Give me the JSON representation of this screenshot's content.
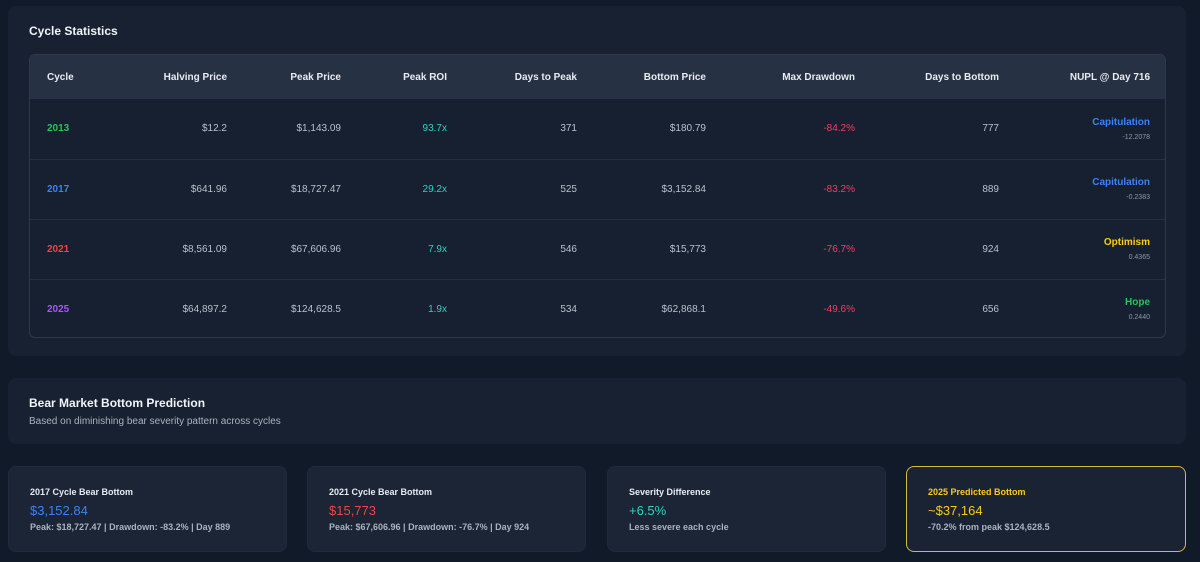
{
  "stats": {
    "title": "Cycle Statistics",
    "headers": [
      "Cycle",
      "Halving Price",
      "Peak Price",
      "Peak ROI",
      "Days to Peak",
      "Bottom Price",
      "Max Drawdown",
      "Days to Bottom",
      "NUPL @ Day 716"
    ],
    "rows": [
      {
        "cycle": "2013",
        "cycle_color": "#22c55e",
        "halving": "$12.2",
        "peak": "$1,143.09",
        "roi": "93.7x",
        "days_peak": "371",
        "bottom": "$180.79",
        "drawdown": "-84.2%",
        "days_bottom": "777",
        "nupl_label": "Capitulation",
        "nupl_color": "#3b82f6",
        "nupl_value": "-12.2078"
      },
      {
        "cycle": "2017",
        "cycle_color": "#3b82f6",
        "halving": "$641.96",
        "peak": "$18,727.47",
        "roi": "29.2x",
        "days_peak": "525",
        "bottom": "$3,152.84",
        "drawdown": "-83.2%",
        "days_bottom": "889",
        "nupl_label": "Capitulation",
        "nupl_color": "#3b82f6",
        "nupl_value": "-0.2383"
      },
      {
        "cycle": "2021",
        "cycle_color": "#ef4444",
        "halving": "$8,561.09",
        "peak": "$67,606.96",
        "roi": "7.9x",
        "days_peak": "546",
        "bottom": "$15,773",
        "drawdown": "-76.7%",
        "days_bottom": "924",
        "nupl_label": "Optimism",
        "nupl_color": "#facc15",
        "nupl_value": "0.4365"
      },
      {
        "cycle": "2025",
        "cycle_color": "#a855f7",
        "halving": "$64,897.2",
        "peak": "$124,628.5",
        "roi": "1.9x",
        "days_peak": "534",
        "bottom": "$62,868.1",
        "drawdown": "-49.6%",
        "days_bottom": "656",
        "nupl_label": "Hope",
        "nupl_color": "#22c55e",
        "nupl_value": "0.2440"
      }
    ],
    "roi_color": "#2dd4bf",
    "drawdown_color": "#f43f5e"
  },
  "prediction": {
    "title": "Bear Market Bottom Prediction",
    "subtitle": "Based on diminishing bear severity pattern across cycles"
  },
  "cards": [
    {
      "label": "2017 Cycle Bear Bottom",
      "value": "$3,152.84",
      "value_color": "#3b82f6",
      "detail": "Peak: $18,727.47 | Drawdown: -83.2% | Day 889"
    },
    {
      "label": "2021 Cycle Bear Bottom",
      "value": "$15,773",
      "value_color": "#ef4444",
      "detail": "Peak: $67,606.96 | Drawdown: -76.7% | Day 924"
    },
    {
      "label": "Severity Difference",
      "value": "+6.5%",
      "value_color": "#2dd4bf",
      "detail": "Less severe each cycle"
    },
    {
      "label": "2025 Predicted Bottom",
      "label_color": "#facc15",
      "value": "~$37,164",
      "value_color": "#facc15",
      "detail": "-70.2% from peak $124,628.5"
    }
  ]
}
